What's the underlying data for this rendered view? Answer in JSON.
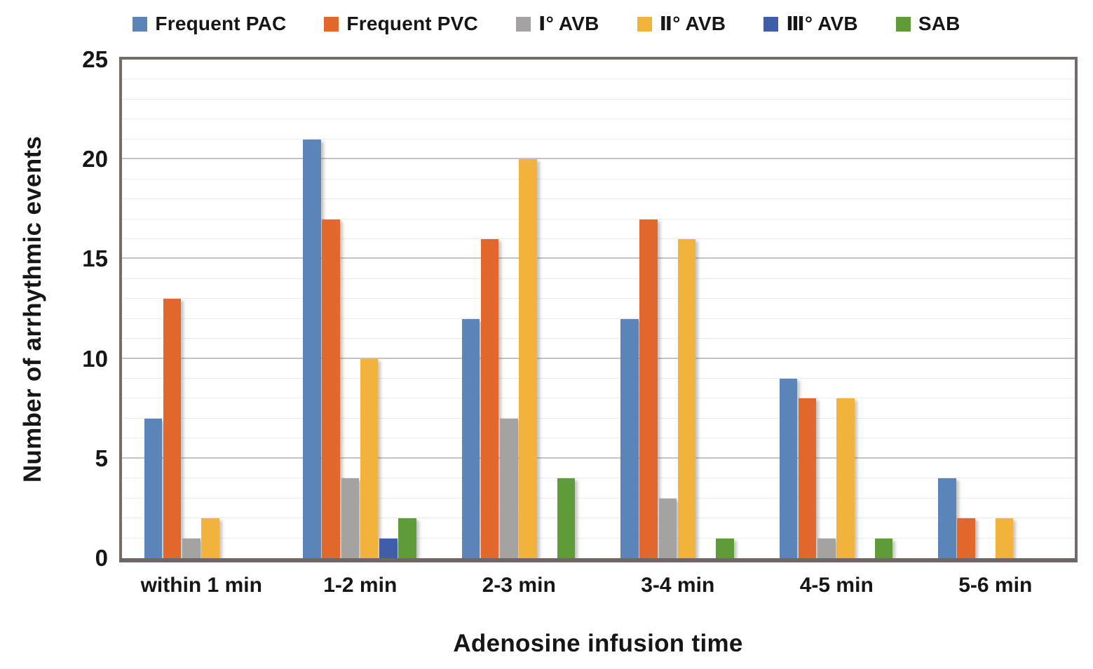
{
  "chart_data": {
    "type": "bar",
    "title": "",
    "xlabel": "Adenosine infusion time",
    "ylabel": "Number of arrhythmic events",
    "ylim": [
      0,
      25
    ],
    "yticks": [
      0,
      5,
      10,
      15,
      20,
      25
    ],
    "minor_grid_interval": 1,
    "major_grid_interval": 5,
    "grid": "horizontal, minor every 1 and major every 5, plot framed",
    "legend_position": "top-center",
    "categories": [
      "within 1 min",
      "1-2 min",
      "2-3 min",
      "3-4 min",
      "4-5 min",
      "5-6 min"
    ],
    "series": [
      {
        "name": "Frequent PAC",
        "color": "#5B84B8",
        "values": [
          7,
          21,
          12,
          12,
          9,
          4
        ]
      },
      {
        "name": "Frequent PVC",
        "color": "#E2672C",
        "values": [
          13,
          17,
          16,
          17,
          8,
          2
        ]
      },
      {
        "name": "Ⅰ° AVB",
        "color": "#A5A3A1",
        "values": [
          1,
          4,
          7,
          3,
          1,
          0
        ]
      },
      {
        "name": "Ⅱ° AVB",
        "color": "#F2B33C",
        "values": [
          2,
          10,
          20,
          16,
          8,
          2
        ]
      },
      {
        "name": "Ⅲ° AVB",
        "color": "#3F5DA9",
        "values": [
          0,
          1,
          0,
          0,
          0,
          0
        ]
      },
      {
        "name": "SAB",
        "color": "#5F9B38",
        "values": [
          0,
          2,
          4,
          1,
          1,
          0
        ]
      }
    ],
    "colors": {
      "text": "#161616",
      "plot_border": "#746B69",
      "minor_gridline": "#ECEAEA",
      "major_gridline": "#C7C3C3",
      "background": "#FFFFFF"
    }
  }
}
